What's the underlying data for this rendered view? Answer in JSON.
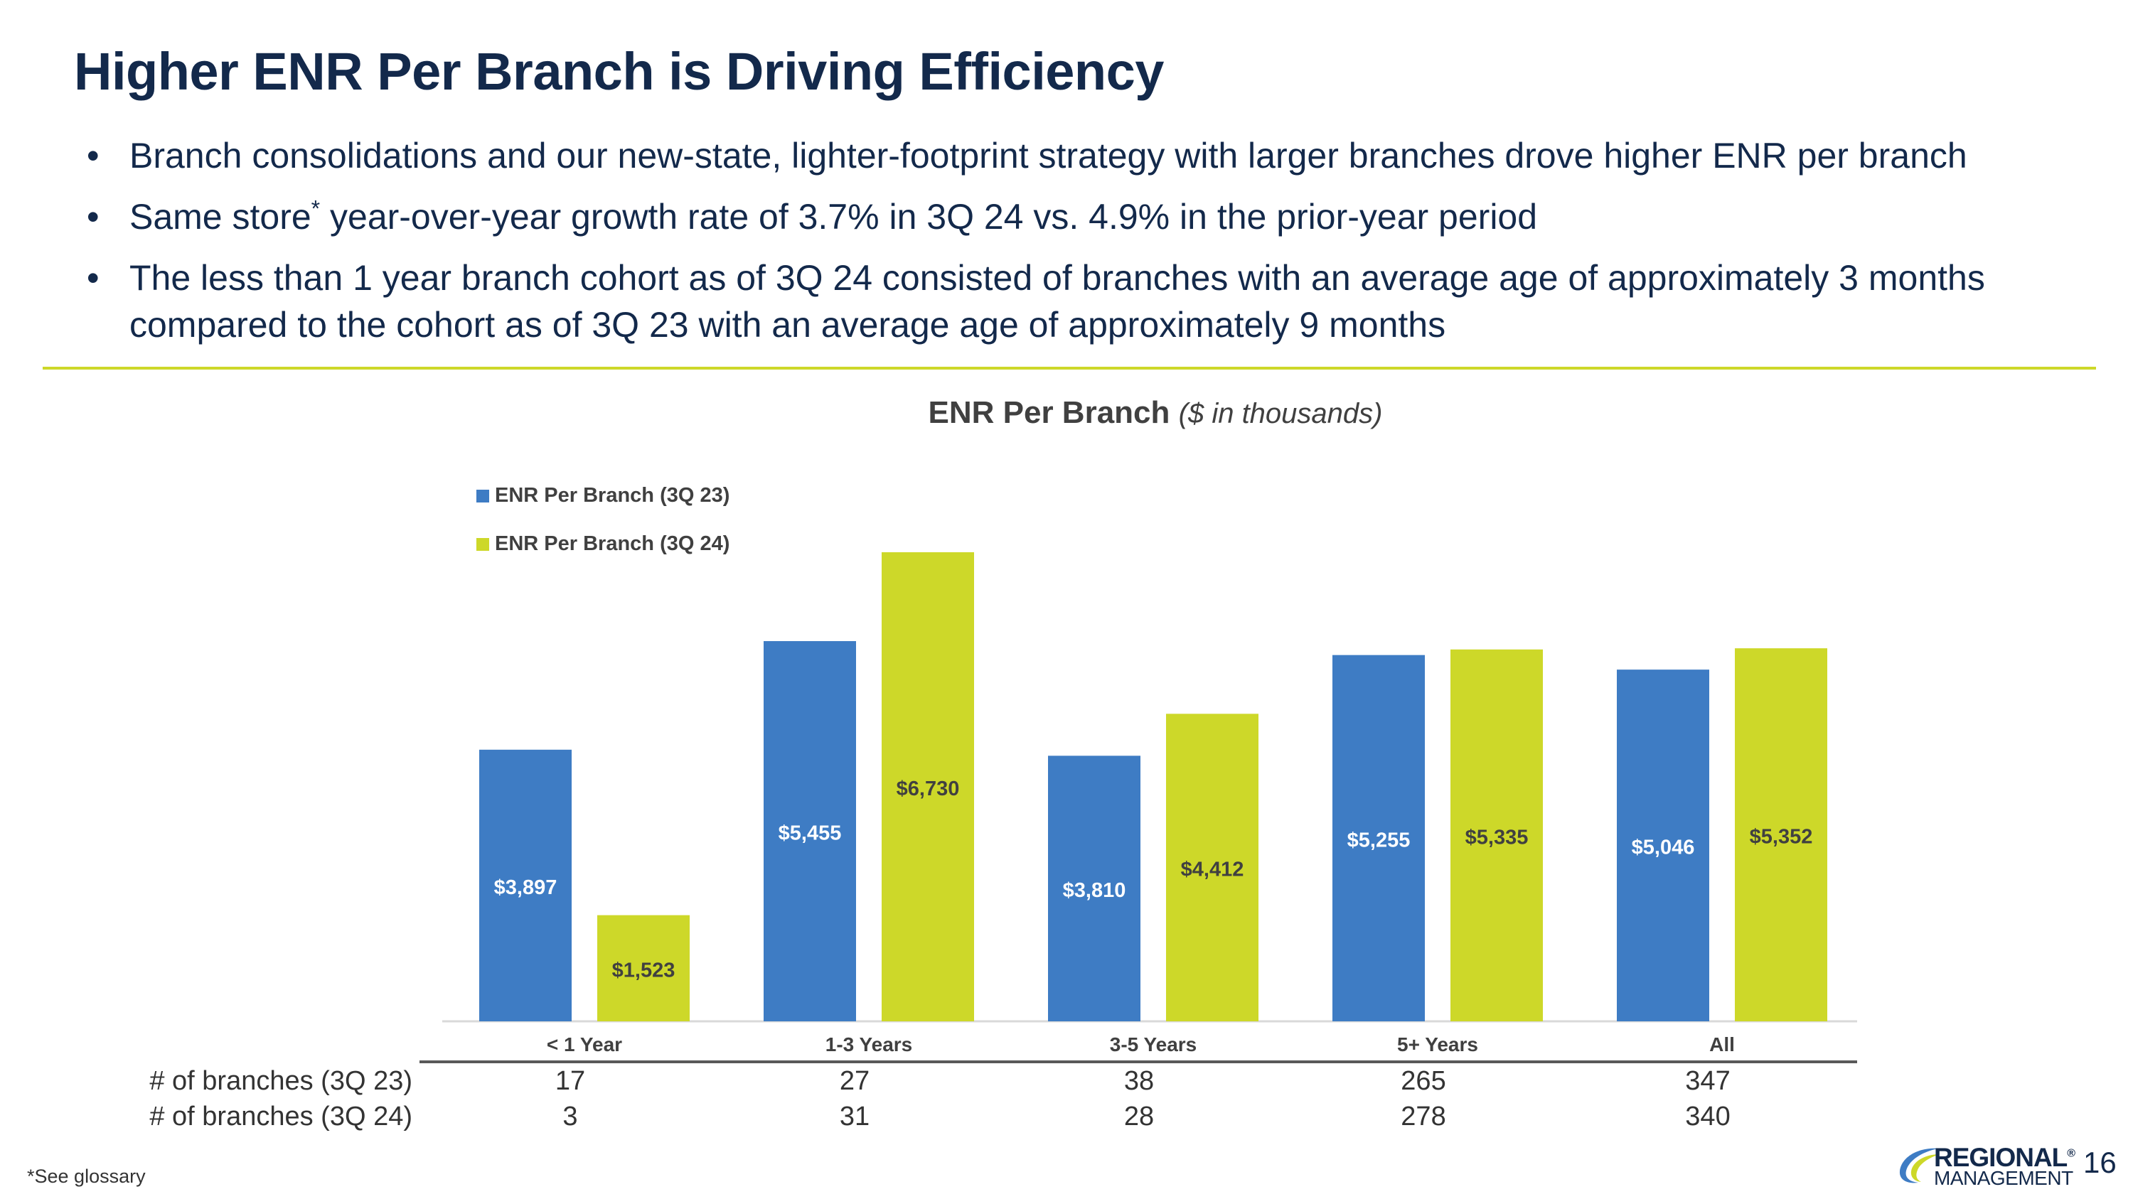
{
  "slide": {
    "title": "Higher ENR Per Branch is Driving Efficiency",
    "bullets": [
      {
        "text": "Branch consolidations and our new-state, lighter-footprint strategy with larger branches drove higher ENR per branch"
      },
      {
        "text_before": "Same store",
        "superscript": "*",
        "text_after": " year-over-year growth rate of 3.7% in 3Q 24 vs. 4.9% in the prior-year period"
      },
      {
        "text": "The less than 1 year branch cohort as of 3Q 24 consisted of branches with an average age of approximately 3 months compared to the cohort as of 3Q 23 with an average age of approximately 9 months"
      }
    ],
    "bullet_glyph": "•",
    "footnote": "*See glossary",
    "page_number": "16",
    "logo": {
      "line1": "REGIONAL",
      "mark": "®",
      "line2": "MANAGEMENT",
      "colors": [
        "#13294b",
        "#3e7cc4",
        "#cdd829"
      ]
    }
  },
  "chart_data": {
    "type": "bar",
    "title": "ENR Per Branch",
    "subtitle": "($ in thousands)",
    "categories": [
      "< 1 Year",
      "1-3 Years",
      "3-5 Years",
      "5+ Years",
      "All"
    ],
    "series": [
      {
        "name": "ENR Per Branch (3Q 23)",
        "color": "#3e7cc4",
        "values": [
          3897,
          5455,
          3810,
          5255,
          5046
        ],
        "labels": [
          "$3,897",
          "$5,455",
          "$3,810",
          "$5,255",
          "$5,046"
        ]
      },
      {
        "name": "ENR Per Branch (3Q 24)",
        "color": "#cdd829",
        "values": [
          1523,
          6730,
          4412,
          5335,
          5352
        ],
        "labels": [
          "$1,523",
          "$6,730",
          "$4,412",
          "$5,335",
          "$5,352"
        ]
      }
    ],
    "ylim": [
      0,
      6730
    ],
    "grid": false,
    "legend_position": "top-left",
    "branch_counts": [
      {
        "label": "# of branches (3Q 23)",
        "values": [
          "17",
          "27",
          "38",
          "265",
          "347"
        ]
      },
      {
        "label": "# of branches (3Q 24)",
        "values": [
          "3",
          "31",
          "28",
          "278",
          "340"
        ]
      }
    ]
  }
}
